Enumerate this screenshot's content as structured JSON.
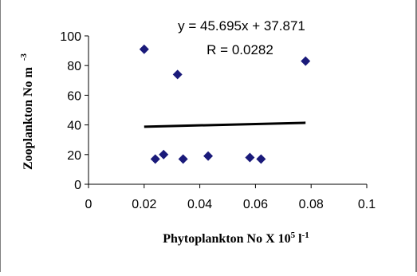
{
  "chart_data": {
    "type": "scatter",
    "title": "",
    "xlabel": "Phytoplankton No X 10",
    "xlabel_sup1": "5",
    "xlabel_mid": " l",
    "xlabel_sup2": "-1",
    "ylabel": "Zooplankton No m",
    "ylabel_sup": "-3",
    "xlim": [
      0,
      0.1
    ],
    "ylim": [
      0,
      100
    ],
    "xticks": [
      {
        "value": 0,
        "label": "0"
      },
      {
        "value": 0.02,
        "label": "0.02"
      },
      {
        "value": 0.04,
        "label": "0.04"
      },
      {
        "value": 0.06,
        "label": "0.06"
      },
      {
        "value": 0.08,
        "label": "0.08"
      },
      {
        "value": 0.1,
        "label": "0.1"
      }
    ],
    "yticks": [
      {
        "value": 0,
        "label": "0"
      },
      {
        "value": 20,
        "label": "20"
      },
      {
        "value": 40,
        "label": "40"
      },
      {
        "value": 60,
        "label": "60"
      },
      {
        "value": 80,
        "label": "80"
      },
      {
        "value": 100,
        "label": "100"
      }
    ],
    "series": [
      {
        "marker_color": "#1a1a7a",
        "points": [
          {
            "x": 0.02,
            "y": 91
          },
          {
            "x": 0.024,
            "y": 17
          },
          {
            "x": 0.027,
            "y": 20
          },
          {
            "x": 0.032,
            "y": 74
          },
          {
            "x": 0.034,
            "y": 17
          },
          {
            "x": 0.043,
            "y": 19
          },
          {
            "x": 0.058,
            "y": 18
          },
          {
            "x": 0.062,
            "y": 17
          },
          {
            "x": 0.078,
            "y": 83
          }
        ]
      }
    ],
    "trendline": {
      "slope": 45.695,
      "intercept": 37.871,
      "x_range": [
        0.02,
        0.078
      ],
      "color": "#000000"
    },
    "annotations": [
      {
        "text": "y = 45.695x + 37.871"
      },
      {
        "text": "R = 0.0282"
      }
    ],
    "grid": false,
    "legend": "none"
  }
}
